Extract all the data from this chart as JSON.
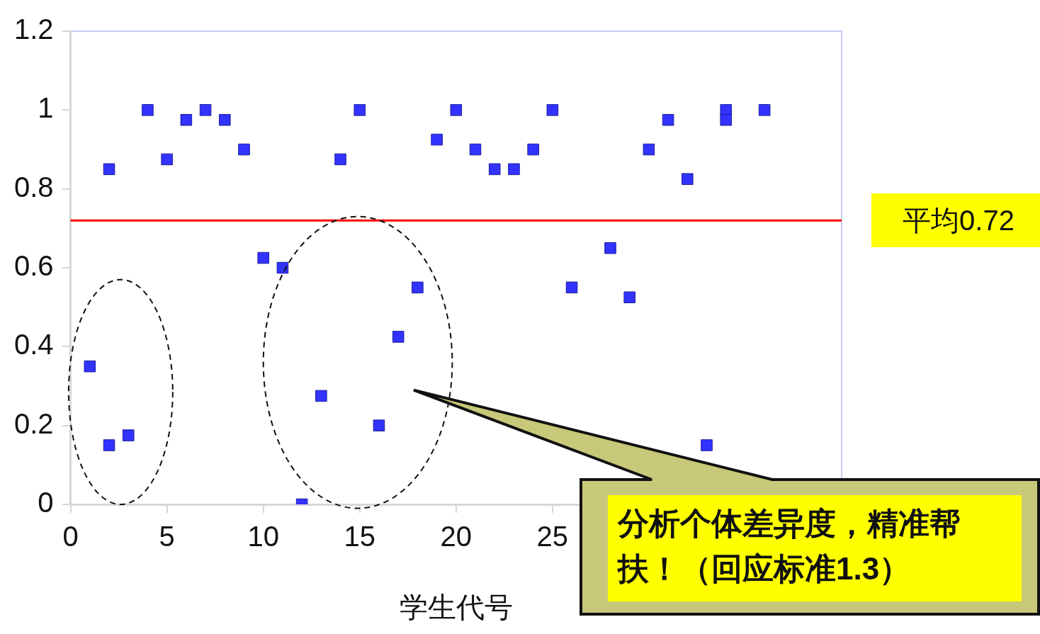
{
  "chart_data": {
    "type": "scatter",
    "xlabel": "学生代号",
    "xlim": [
      0,
      40
    ],
    "xticks": [
      0,
      5,
      10,
      15,
      20,
      25
    ],
    "ylim": [
      0,
      1.2
    ],
    "yticks": [
      0,
      0.2,
      0.4,
      0.6,
      0.8,
      1,
      1.2
    ],
    "series": [
      {
        "color": "#3333ff",
        "x": [
          1,
          2,
          2,
          3,
          4,
          5,
          6,
          7,
          8,
          9,
          10,
          11,
          12,
          13,
          14,
          15,
          16,
          17,
          18,
          19,
          20,
          21,
          22,
          23,
          24,
          25,
          26,
          28,
          29,
          30,
          31,
          32,
          33,
          34,
          34,
          36
        ],
        "values": [
          0.35,
          0.85,
          0.15,
          0.175,
          1,
          0.875,
          0.975,
          1,
          0.975,
          0.9,
          0.625,
          0.6,
          0,
          0.275,
          0.875,
          1,
          0.2,
          0.425,
          0.55,
          0.925,
          1,
          0.9,
          0.85,
          0.85,
          0.9,
          1,
          0.55,
          0.65,
          0.525,
          0.9,
          0.975,
          0.825,
          0.15,
          1,
          0.975,
          1
        ]
      }
    ],
    "marker": "square",
    "grid": false,
    "legend": false,
    "ref_lines": [
      {
        "axis": "y",
        "value": 0.72,
        "label": "平均0.72",
        "color": "#ff0000"
      }
    ],
    "annotations": [
      "分析个体差异度，精准帮扶！（回应标准1.3）"
    ]
  }
}
